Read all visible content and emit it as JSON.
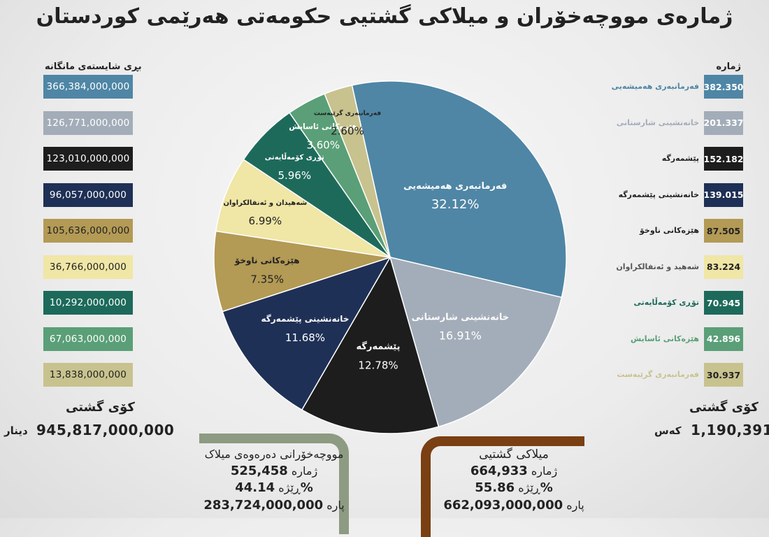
{
  "title": "ژمارەی مووچەخۆران و میلاکی گشتیی حکومەتی هەرێمی کوردستان",
  "left_header": "بڕی شایستەی مانگانە",
  "right_header": "ژمارە",
  "left_total": {
    "label": "کۆی گشتی",
    "value": "945,817,000,000",
    "unit": "دینار"
  },
  "right_total": {
    "label": "کۆی گشتی",
    "value": "1,190,391",
    "unit": "کەس"
  },
  "excluded": {
    "title": "مووچەخۆرانی دەرەوەی میلاک",
    "count_value": "525,458",
    "count_label": "ژمارە",
    "ratio_value": "44.14%",
    "ratio_label": "ڕێژە",
    "money_value": "283,724,000,000",
    "money_label": "پارە"
  },
  "general": {
    "title": "میلاکی گشتیی",
    "count_value": "664,933",
    "count_label": "ژمارە",
    "ratio_value": "55.86%",
    "ratio_label": "ڕێژە",
    "money_value": "662,093,000,000",
    "money_label": "پارە"
  },
  "colors": {
    "c1": "#4f86a5",
    "c2": "#a3adb9",
    "c3": "#1d1d1d",
    "c4": "#1f3056",
    "c5": "#b39a55",
    "c6": "#f0e6a6",
    "c7": "#1d6a5b",
    "c8": "#5a9f77",
    "c9": "#c8c28e",
    "bracket_left": "#8d9b82",
    "bracket_right": "#7a3f12"
  },
  "chart_data": {
    "type": "pie",
    "categories": [
      {
        "pie_label": "فەرمانبەری هەمیشەیی",
        "side_label": "فەرمانبەری هەمیشەیی",
        "percent_label": "32.12%",
        "percent": 32.12,
        "count": "382.350",
        "amount": "366,384,000,000",
        "color_key": "c1"
      },
      {
        "pie_label": "خانەنشینی شارستانی",
        "side_label": "خانەنشینی شارستانی",
        "percent_label": "16.91%",
        "percent": 16.91,
        "count": "201.337",
        "amount": "126,771,000,000",
        "color_key": "c2"
      },
      {
        "pie_label": "پێشمەرگە",
        "side_label": "پێشمەرگە",
        "percent_label": "12.78%",
        "percent": 12.78,
        "count": "152.182",
        "amount": "123,010,000,000",
        "color_key": "c3"
      },
      {
        "pie_label": "خانەنشینی پێشمەرگە",
        "side_label": "خانەنشینی پێشمەرگە",
        "percent_label": "11.68%",
        "percent": 11.68,
        "count": "139.015",
        "amount": "96,057,000,000",
        "color_key": "c4"
      },
      {
        "pie_label": "هێزەکانی ناوخۆ",
        "side_label": "هێزەکانی ناوخۆ",
        "percent_label": "7.35%",
        "percent": 7.35,
        "count": "87.505",
        "amount": "105,636,000,000",
        "color_key": "c5"
      },
      {
        "pie_label": "شەهیدان و ئەنفالکراوان",
        "side_label": "شەهید و ئەنفالکراوان",
        "percent_label": "6.99%",
        "percent": 6.99,
        "count": "83.224",
        "amount": "36,766,000,000",
        "color_key": "c6"
      },
      {
        "pie_label": "تۆڕی کۆمەڵایەتی",
        "side_label": "تۆڕی کۆمەڵایەتی",
        "percent_label": "5.96%",
        "percent": 5.96,
        "count": "70.945",
        "amount": "10,292,000,000",
        "color_key": "c7"
      },
      {
        "pie_label": "هێزەکانی ئاسایش",
        "side_label": "هێزەکانی ئاسایش",
        "percent_label": "3.60%",
        "percent": 3.6,
        "count": "42.896",
        "amount": "67,063,000,000",
        "color_key": "c8"
      },
      {
        "pie_label": "فەرمانبەری گرێبەست",
        "side_label": "فەرمانبەری گرێبەست",
        "percent_label": "2.60%",
        "percent": 2.6,
        "count": "30.937",
        "amount": "13,838,000,000",
        "color_key": "c9"
      }
    ]
  }
}
